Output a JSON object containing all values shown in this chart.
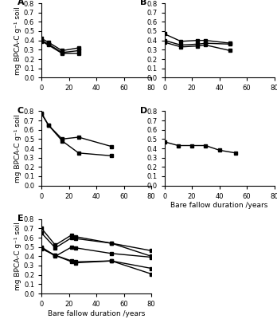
{
  "panels": {
    "A": {
      "label": "A",
      "series": [
        {
          "x": [
            0,
            5,
            15,
            27
          ],
          "y": [
            0.42,
            0.38,
            0.29,
            0.32
          ]
        },
        {
          "x": [
            0,
            5,
            15,
            27
          ],
          "y": [
            0.4,
            0.36,
            0.27,
            0.29
          ]
        },
        {
          "x": [
            0,
            5,
            15,
            27
          ],
          "y": [
            0.39,
            0.35,
            0.26,
            0.26
          ]
        }
      ],
      "show_ylabel": true,
      "show_xlabel": false
    },
    "B": {
      "label": "B",
      "series": [
        {
          "x": [
            0,
            12,
            24,
            30,
            48
          ],
          "y": [
            0.47,
            0.39,
            0.4,
            0.4,
            0.37
          ]
        },
        {
          "x": [
            0,
            12,
            24,
            30,
            48
          ],
          "y": [
            0.4,
            0.35,
            0.36,
            0.37,
            0.36
          ]
        },
        {
          "x": [
            0,
            12,
            24,
            30,
            48
          ],
          "y": [
            0.38,
            0.33,
            0.34,
            0.35,
            0.29
          ]
        }
      ],
      "show_ylabel": true,
      "show_xlabel": false
    },
    "C": {
      "label": "C",
      "series": [
        {
          "x": [
            0,
            5,
            15,
            27,
            51
          ],
          "y": [
            0.78,
            0.65,
            0.5,
            0.52,
            0.42
          ]
        },
        {
          "x": [
            0,
            5,
            15,
            27,
            51
          ],
          "y": [
            0.77,
            0.65,
            0.48,
            0.35,
            0.32
          ]
        }
      ],
      "show_ylabel": true,
      "show_xlabel": false
    },
    "D": {
      "label": "D",
      "series": [
        {
          "x": [
            0,
            10,
            20,
            30,
            40,
            52
          ],
          "y": [
            0.47,
            0.43,
            0.43,
            0.43,
            0.38,
            0.35
          ]
        }
      ],
      "show_ylabel": true,
      "show_xlabel": true
    },
    "E": {
      "label": "E",
      "series": [
        {
          "x": [
            0,
            10,
            22,
            25,
            51,
            80
          ],
          "y": [
            0.7,
            0.52,
            0.63,
            0.61,
            0.54,
            0.46
          ]
        },
        {
          "x": [
            0,
            10,
            22,
            25,
            51,
            80
          ],
          "y": [
            0.65,
            0.49,
            0.6,
            0.59,
            0.54,
            0.4
          ]
        },
        {
          "x": [
            0,
            10,
            22,
            25,
            51,
            80
          ],
          "y": [
            0.5,
            0.4,
            0.5,
            0.49,
            0.43,
            0.39
          ]
        },
        {
          "x": [
            0,
            10,
            22,
            25,
            51,
            80
          ],
          "y": [
            0.49,
            0.41,
            0.35,
            0.34,
            0.35,
            0.27
          ]
        },
        {
          "x": [
            0,
            10,
            22,
            25,
            51,
            80
          ],
          "y": [
            0.48,
            0.41,
            0.34,
            0.33,
            0.35,
            0.21
          ]
        }
      ],
      "show_ylabel": true,
      "show_xlabel": true
    }
  },
  "ylabel": "mg BPCA-C g⁻¹ soil",
  "xlabel": "Bare fallow duration /years",
  "ylim": [
    0.0,
    0.8
  ],
  "yticks": [
    0.0,
    0.1,
    0.2,
    0.3,
    0.4,
    0.5,
    0.6,
    0.7,
    0.8
  ],
  "xticks": [
    0,
    20,
    40,
    60,
    80
  ],
  "line_color": "black",
  "marker": "s",
  "markersize": 3.5,
  "linewidth": 1.0,
  "label_fontsize": 8,
  "tick_fontsize": 6,
  "axis_label_fontsize": 6.5
}
